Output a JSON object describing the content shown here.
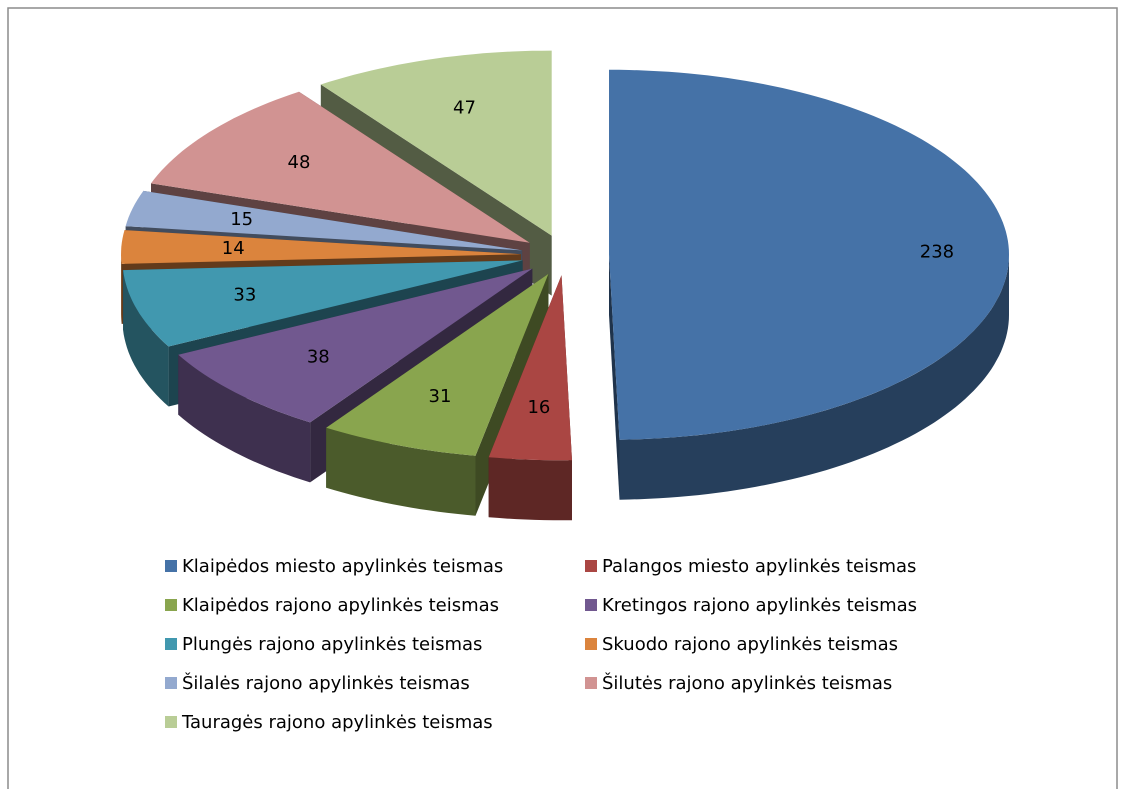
{
  "chart_data": {
    "type": "pie3d",
    "categories": [
      "Klaipėdos miesto apylinkės teismas",
      "Palangos miesto apylinkės teismas",
      "Klaipėdos rajono apylinkės teismas",
      "Kretingos rajono apylinkės teismas",
      "Plungės rajono apylinkės teismas",
      "Skuodo rajono apylinkės teismas",
      "Šilalės rajono apylinkės teismas",
      "Šilutės rajono apylinkės teismas",
      "Tauragės rajono apylinkės teismas"
    ],
    "values": [
      238,
      16,
      31,
      38,
      33,
      14,
      15,
      48,
      47
    ],
    "colors": [
      "#4572a7",
      "#aa4643",
      "#89a54e",
      "#71588f",
      "#4198af",
      "#db843d",
      "#93a9cf",
      "#d19392",
      "#b9cd96"
    ],
    "legend": "bottom"
  }
}
